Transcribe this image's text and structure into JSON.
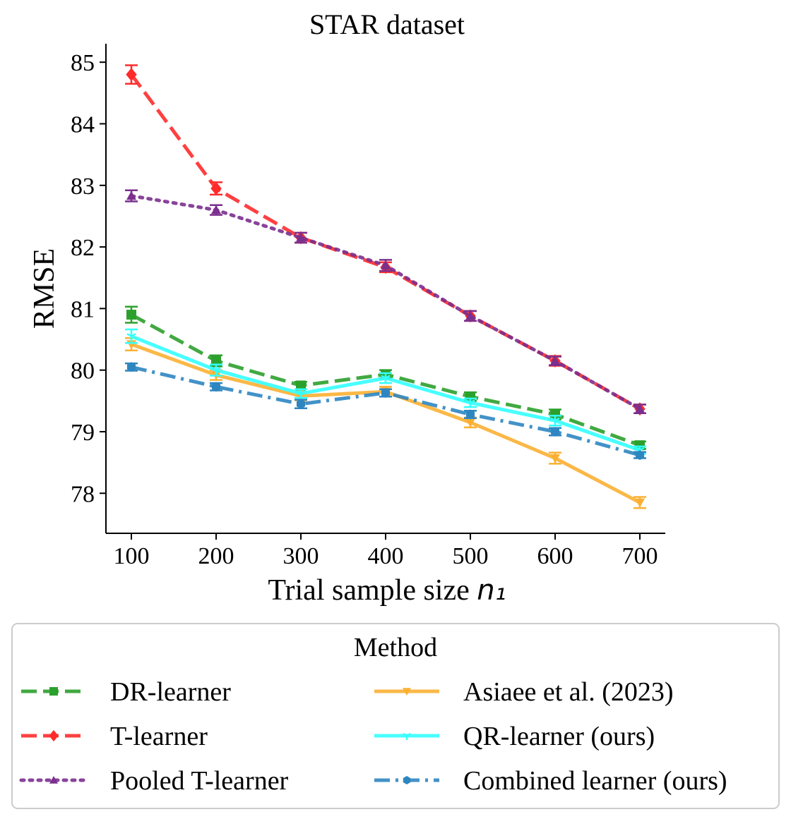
{
  "chart_data": {
    "type": "line",
    "title": "STAR dataset",
    "xlabel": "Trial sample size ",
    "xlabel_math": "n₁",
    "ylabel": "RMSE",
    "x": [
      100,
      200,
      300,
      400,
      500,
      600,
      700
    ],
    "xticks": [
      100,
      200,
      300,
      400,
      500,
      600,
      700
    ],
    "yticks": [
      78,
      79,
      80,
      81,
      82,
      83,
      84,
      85
    ],
    "xlim": [
      70,
      730
    ],
    "ylim": [
      77.35,
      85.3
    ],
    "legend": {
      "title": "Method",
      "position": "below"
    },
    "series": [
      {
        "name": "DR-learner",
        "color": "#2ca02c",
        "dash": "dashed",
        "marker": "square",
        "values": [
          80.9,
          80.15,
          79.75,
          79.93,
          79.57,
          79.28,
          78.78
        ],
        "errors": [
          0.13,
          0.09,
          0.06,
          0.07,
          0.07,
          0.08,
          0.06
        ]
      },
      {
        "name": "T-learner",
        "color": "#ff2b2b",
        "dash": "dashed",
        "marker": "diamond",
        "values": [
          84.8,
          82.95,
          82.15,
          81.67,
          80.88,
          80.15,
          79.37
        ],
        "errors": [
          0.15,
          0.1,
          0.08,
          0.08,
          0.08,
          0.08,
          0.07
        ]
      },
      {
        "name": "Pooled T-learner",
        "color": "#7b2f8e",
        "dash": "dotted",
        "marker": "triangle-up",
        "values": [
          82.83,
          82.6,
          82.15,
          81.7,
          80.88,
          80.15,
          79.37
        ],
        "errors": [
          0.09,
          0.08,
          0.08,
          0.09,
          0.08,
          0.07,
          0.07
        ]
      },
      {
        "name": "Asiaee et al. (2023)",
        "color": "#fbb033",
        "dash": "solid",
        "marker": "triangle-down",
        "values": [
          80.42,
          79.92,
          79.58,
          79.65,
          79.15,
          78.57,
          77.85
        ],
        "errors": [
          0.1,
          0.08,
          0.07,
          0.08,
          0.08,
          0.09,
          0.09
        ]
      },
      {
        "name": "QR-learner (ours)",
        "color": "#33ffff",
        "dash": "solid",
        "marker": "tri",
        "values": [
          80.55,
          80.0,
          79.62,
          79.87,
          79.47,
          79.18,
          78.7
        ],
        "errors": [
          0.11,
          0.09,
          0.07,
          0.08,
          0.07,
          0.08,
          0.06
        ]
      },
      {
        "name": "Combined learner (ours)",
        "color": "#2e86c1",
        "dash": "dashdot",
        "marker": "hexagon",
        "values": [
          80.05,
          79.73,
          79.45,
          79.63,
          79.28,
          79.0,
          78.62
        ],
        "errors": [
          0.06,
          0.06,
          0.07,
          0.06,
          0.06,
          0.06,
          0.05
        ]
      }
    ]
  }
}
